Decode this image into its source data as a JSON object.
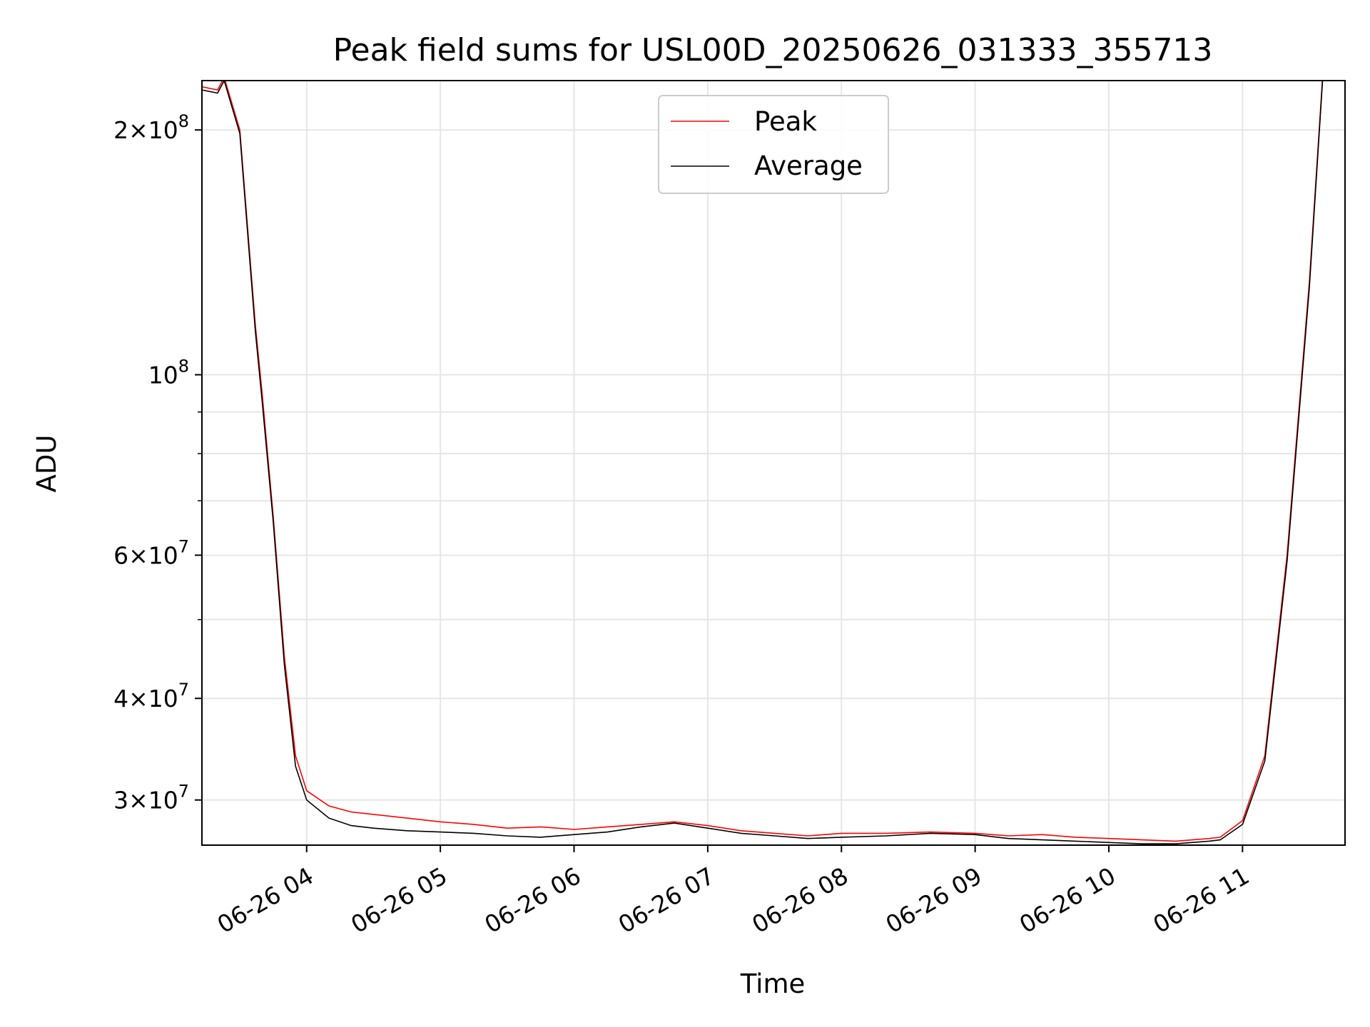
{
  "chart_data": {
    "type": "line",
    "title": "Peak field sums for USL00D_20250626_031333_355713",
    "xlabel": "Time",
    "ylabel": "ADU",
    "xlim": [
      "2025-06-26 03:13",
      "2025-06-26 11:46"
    ],
    "ylim": [
      26400000,
      230000000
    ],
    "yscale": "log",
    "grid": true,
    "legend": "top-center",
    "x_ticks": [
      {
        "value": "2025-06-26 04:00",
        "label": "06-26 04"
      },
      {
        "value": "2025-06-26 05:00",
        "label": "06-26 05"
      },
      {
        "value": "2025-06-26 06:00",
        "label": "06-26 06"
      },
      {
        "value": "2025-06-26 07:00",
        "label": "06-26 07"
      },
      {
        "value": "2025-06-26 08:00",
        "label": "06-26 08"
      },
      {
        "value": "2025-06-26 09:00",
        "label": "06-26 09"
      },
      {
        "value": "2025-06-26 10:00",
        "label": "06-26 10"
      },
      {
        "value": "2025-06-26 11:00",
        "label": "06-26 11"
      }
    ],
    "y_ticks": [
      {
        "value": 30000000,
        "mantissa": "3",
        "exponent": "7"
      },
      {
        "value": 40000000,
        "mantissa": "4",
        "exponent": "7"
      },
      {
        "value": 60000000,
        "mantissa": "6",
        "exponent": "7"
      },
      {
        "value": 100000000,
        "mantissa": "",
        "exponent": "8"
      },
      {
        "value": 200000000,
        "mantissa": "2",
        "exponent": "8"
      }
    ],
    "y_minor_ticks": [
      50000000,
      70000000,
      80000000,
      90000000
    ],
    "series": [
      {
        "name": "Peak",
        "color": "#ff0000",
        "x": [
          "2025-06-26 03:13",
          "2025-06-26 03:20",
          "2025-06-26 03:23",
          "2025-06-26 03:30",
          "2025-06-26 03:37",
          "2025-06-26 03:40",
          "2025-06-26 03:45",
          "2025-06-26 03:50",
          "2025-06-26 03:55",
          "2025-06-26 04:00",
          "2025-06-26 04:10",
          "2025-06-26 04:20",
          "2025-06-26 04:30",
          "2025-06-26 04:45",
          "2025-06-26 05:00",
          "2025-06-26 05:15",
          "2025-06-26 05:30",
          "2025-06-26 05:45",
          "2025-06-26 06:00",
          "2025-06-26 06:15",
          "2025-06-26 06:30",
          "2025-06-26 06:45",
          "2025-06-26 07:00",
          "2025-06-26 07:15",
          "2025-06-26 07:30",
          "2025-06-26 07:45",
          "2025-06-26 08:00",
          "2025-06-26 08:20",
          "2025-06-26 08:40",
          "2025-06-26 09:00",
          "2025-06-26 09:15",
          "2025-06-26 09:30",
          "2025-06-26 09:45",
          "2025-06-26 10:00",
          "2025-06-26 10:15",
          "2025-06-26 10:30",
          "2025-06-26 10:45",
          "2025-06-26 10:50",
          "2025-06-26 11:00",
          "2025-06-26 11:10",
          "2025-06-26 11:20",
          "2025-06-26 11:30",
          "2025-06-26 11:36"
        ],
        "y": [
          226000000,
          224000000,
          232000000,
          200000000,
          115000000,
          95000000,
          67000000,
          45000000,
          34000000,
          30800000,
          29500000,
          29000000,
          28800000,
          28500000,
          28200000,
          28000000,
          27700000,
          27800000,
          27600000,
          27800000,
          28000000,
          28200000,
          27900000,
          27500000,
          27300000,
          27100000,
          27300000,
          27300000,
          27400000,
          27300000,
          27100000,
          27200000,
          27000000,
          26900000,
          26800000,
          26700000,
          26900000,
          27000000,
          28300000,
          34000000,
          60000000,
          130000000,
          234000000
        ]
      },
      {
        "name": "Average",
        "color": "#000000",
        "x": [
          "2025-06-26 03:13",
          "2025-06-26 03:20",
          "2025-06-26 03:23",
          "2025-06-26 03:30",
          "2025-06-26 03:37",
          "2025-06-26 03:40",
          "2025-06-26 03:45",
          "2025-06-26 03:50",
          "2025-06-26 03:55",
          "2025-06-26 04:00",
          "2025-06-26 04:10",
          "2025-06-26 04:20",
          "2025-06-26 04:30",
          "2025-06-26 04:45",
          "2025-06-26 05:00",
          "2025-06-26 05:15",
          "2025-06-26 05:30",
          "2025-06-26 05:45",
          "2025-06-26 06:00",
          "2025-06-26 06:15",
          "2025-06-26 06:30",
          "2025-06-26 06:45",
          "2025-06-26 07:00",
          "2025-06-26 07:15",
          "2025-06-26 07:30",
          "2025-06-26 07:45",
          "2025-06-26 08:00",
          "2025-06-26 08:20",
          "2025-06-26 08:40",
          "2025-06-26 09:00",
          "2025-06-26 09:15",
          "2025-06-26 09:30",
          "2025-06-26 09:45",
          "2025-06-26 10:00",
          "2025-06-26 10:15",
          "2025-06-26 10:30",
          "2025-06-26 10:45",
          "2025-06-26 10:50",
          "2025-06-26 11:00",
          "2025-06-26 11:10",
          "2025-06-26 11:20",
          "2025-06-26 11:30",
          "2025-06-26 11:36"
        ],
        "y": [
          224000000,
          222000000,
          230000000,
          198000000,
          113000000,
          93000000,
          66000000,
          44000000,
          33000000,
          30000000,
          28500000,
          27900000,
          27700000,
          27500000,
          27400000,
          27300000,
          27100000,
          27000000,
          27200000,
          27400000,
          27800000,
          28100000,
          27700000,
          27300000,
          27100000,
          26900000,
          27000000,
          27100000,
          27300000,
          27200000,
          26900000,
          26800000,
          26700000,
          26600000,
          26500000,
          26500000,
          26700000,
          26800000,
          28000000,
          33500000,
          59000000,
          128000000,
          232000000
        ]
      }
    ]
  }
}
